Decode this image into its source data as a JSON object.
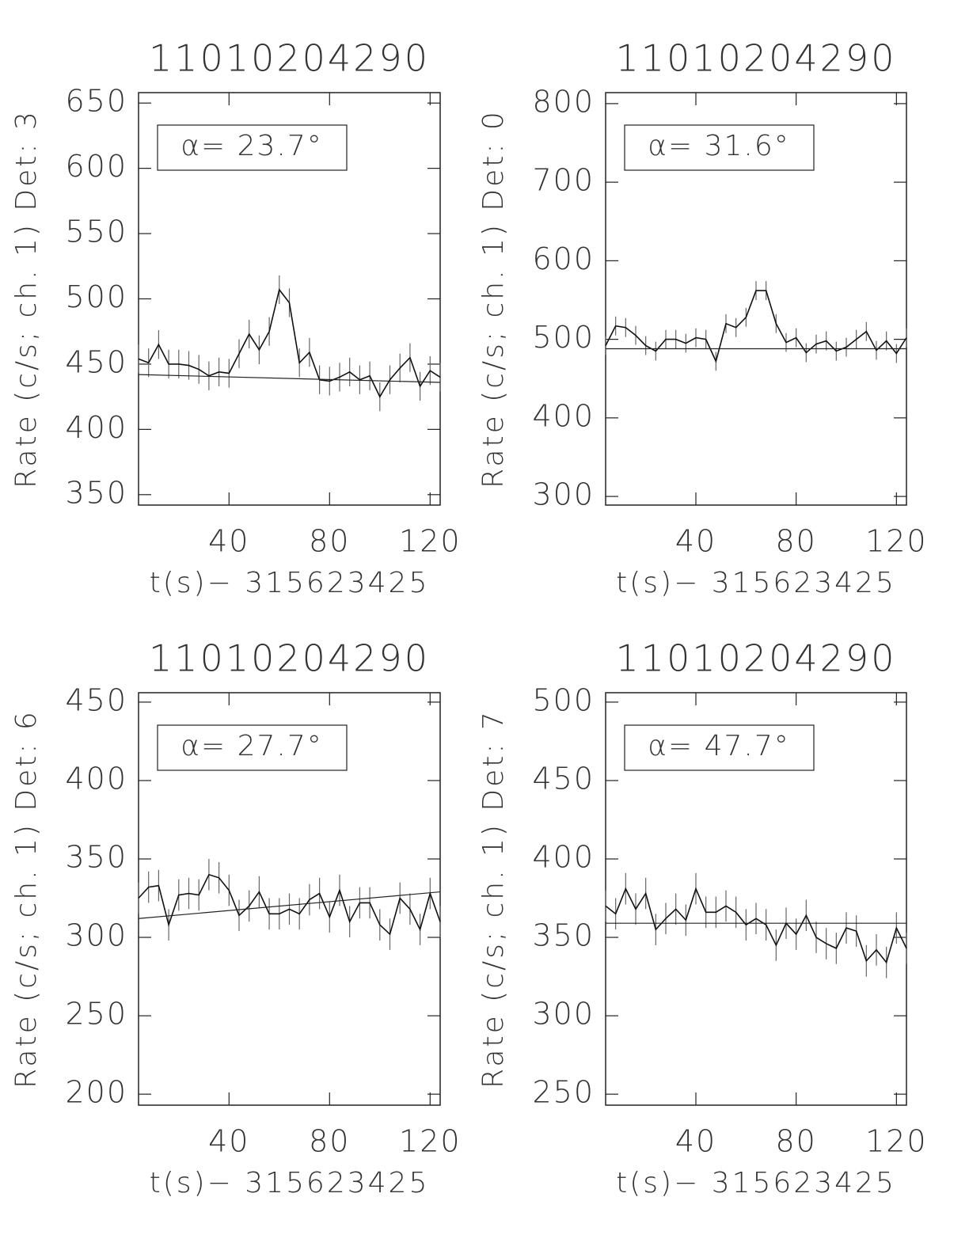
{
  "chart_data": [
    {
      "type": "line",
      "title": "11010204290",
      "ylabel": "Rate (c/s; ch. 1) Det: 3",
      "xlabel": "t(s)− 315623425",
      "annotation": "α= 23.7°",
      "x": [
        4,
        8,
        12,
        16,
        20,
        24,
        28,
        32,
        36,
        40,
        44,
        48,
        52,
        56,
        60,
        64,
        68,
        72,
        76,
        80,
        84,
        88,
        92,
        96,
        100,
        104,
        108,
        112,
        116,
        120,
        124
      ],
      "values": [
        454,
        451,
        465,
        450,
        450,
        449,
        446,
        441,
        444,
        443,
        458,
        473,
        461,
        475,
        507,
        497,
        451,
        459,
        438,
        437,
        440,
        444,
        438,
        441,
        425,
        438,
        447,
        455,
        433,
        445,
        440
      ],
      "errors": [
        11,
        11,
        11,
        11,
        11,
        11,
        11,
        11,
        11,
        11,
        11,
        11,
        11,
        11,
        11,
        11,
        11,
        11,
        11,
        11,
        11,
        11,
        11,
        11,
        11,
        11,
        11,
        11,
        11,
        11,
        11
      ],
      "fit": {
        "x": [
          4,
          124
        ],
        "y": [
          442,
          436
        ]
      },
      "xlim": [
        4,
        124
      ],
      "xticks": [
        40,
        80,
        120
      ],
      "ylim": [
        342,
        658
      ],
      "yticks": [
        350,
        400,
        450,
        500,
        550,
        600,
        650
      ]
    },
    {
      "type": "line",
      "title": "11010204290",
      "ylabel": "Rate (c/s; ch. 1) Det: 0",
      "xlabel": "t(s)− 315623425",
      "annotation": "α= 31.6°",
      "x": [
        4,
        8,
        12,
        16,
        20,
        24,
        28,
        32,
        36,
        40,
        44,
        48,
        52,
        56,
        60,
        64,
        68,
        72,
        76,
        80,
        84,
        88,
        92,
        96,
        100,
        104,
        108,
        112,
        116,
        120,
        124
      ],
      "values": [
        492,
        517,
        515,
        505,
        492,
        485,
        500,
        500,
        495,
        502,
        500,
        472,
        520,
        515,
        528,
        562,
        562,
        520,
        496,
        502,
        483,
        494,
        498,
        485,
        490,
        500,
        510,
        486,
        498,
        482,
        502
      ],
      "errors": [
        12,
        12,
        12,
        12,
        12,
        12,
        12,
        12,
        12,
        12,
        12,
        12,
        12,
        12,
        12,
        12,
        12,
        12,
        12,
        12,
        12,
        12,
        12,
        12,
        12,
        12,
        12,
        12,
        12,
        12,
        12
      ],
      "fit": {
        "x": [
          4,
          124
        ],
        "y": [
          488,
          488
        ]
      },
      "xlim": [
        4,
        124
      ],
      "xticks": [
        40,
        80,
        120
      ],
      "ylim": [
        289,
        814
      ],
      "yticks": [
        300,
        400,
        500,
        600,
        700,
        800
      ]
    },
    {
      "type": "line",
      "title": "11010204290",
      "ylabel": "Rate (c/s; ch. 1) Det: 6",
      "xlabel": "t(s)− 315623425",
      "annotation": "α= 27.7°",
      "x": [
        4,
        8,
        12,
        16,
        20,
        24,
        28,
        32,
        36,
        40,
        44,
        48,
        52,
        56,
        60,
        64,
        68,
        72,
        76,
        80,
        84,
        88,
        92,
        96,
        100,
        104,
        108,
        112,
        116,
        120,
        124
      ],
      "values": [
        325,
        332,
        333,
        308,
        327,
        328,
        327,
        340,
        338,
        330,
        314,
        320,
        329,
        315,
        315,
        318,
        315,
        324,
        328,
        313,
        330,
        310,
        322,
        322,
        308,
        302,
        325,
        318,
        305,
        328,
        310
      ],
      "errors": [
        10,
        10,
        10,
        10,
        10,
        10,
        10,
        10,
        10,
        10,
        10,
        10,
        10,
        10,
        10,
        10,
        10,
        10,
        10,
        10,
        10,
        10,
        10,
        10,
        10,
        10,
        10,
        10,
        10,
        10,
        10
      ],
      "fit": {
        "x": [
          4,
          124
        ],
        "y": [
          312,
          329
        ]
      },
      "xlim": [
        4,
        124
      ],
      "xticks": [
        40,
        80,
        120
      ],
      "ylim": [
        193,
        456
      ],
      "yticks": [
        200,
        250,
        300,
        350,
        400,
        450
      ]
    },
    {
      "type": "line",
      "title": "11010204290",
      "ylabel": "Rate (c/s; ch. 1) Det: 7",
      "xlabel": "t(s)− 315623425",
      "annotation": "α= 47.7°",
      "x": [
        4,
        8,
        12,
        16,
        20,
        24,
        28,
        32,
        36,
        40,
        44,
        48,
        52,
        56,
        60,
        64,
        68,
        72,
        76,
        80,
        84,
        88,
        92,
        96,
        100,
        104,
        108,
        112,
        116,
        120,
        124
      ],
      "values": [
        370,
        365,
        381,
        368,
        378,
        355,
        362,
        368,
        361,
        381,
        366,
        366,
        370,
        366,
        358,
        362,
        358,
        345,
        359,
        352,
        364,
        350,
        346,
        343,
        356,
        354,
        335,
        342,
        334,
        356,
        343
      ],
      "errors": [
        10,
        10,
        10,
        10,
        10,
        10,
        10,
        10,
        10,
        10,
        10,
        10,
        10,
        10,
        10,
        10,
        10,
        10,
        10,
        10,
        10,
        10,
        10,
        10,
        10,
        10,
        10,
        10,
        10,
        10,
        10
      ],
      "fit": {
        "x": [
          4,
          124
        ],
        "y": [
          359,
          359
        ]
      },
      "xlim": [
        4,
        124
      ],
      "xticks": [
        40,
        80,
        120
      ],
      "ylim": [
        243,
        506
      ],
      "yticks": [
        250,
        300,
        350,
        400,
        450,
        500
      ]
    }
  ]
}
